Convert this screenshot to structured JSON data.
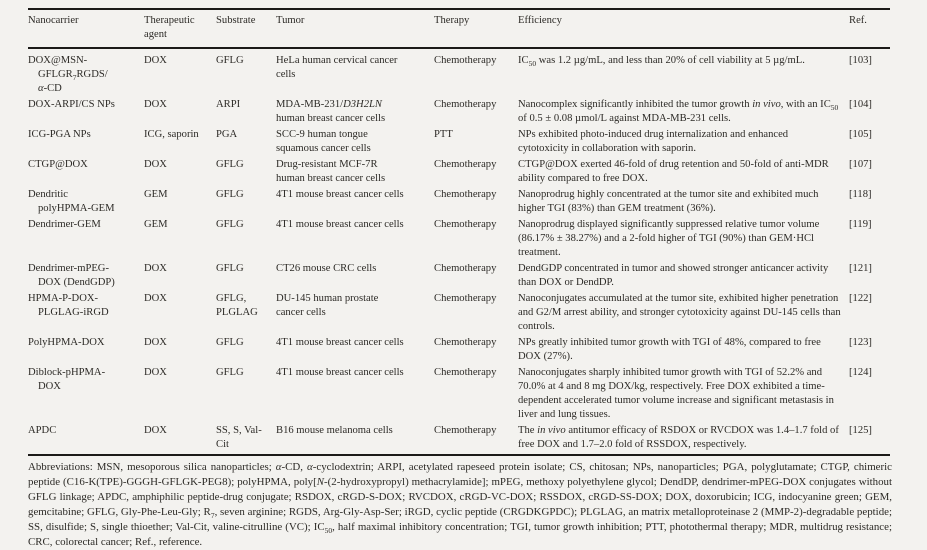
{
  "page": {
    "background_color": "#f3f2ef",
    "text_color": "#2c2a26",
    "rule_color": "#1b1a18"
  },
  "table": {
    "columns": [
      {
        "key": "nanocarrier",
        "label": "Nanocarrier"
      },
      {
        "key": "agent",
        "label": "Therapeutic agent"
      },
      {
        "key": "substrate",
        "label": "Substrate"
      },
      {
        "key": "tumor",
        "label": "Tumor"
      },
      {
        "key": "therapy",
        "label": "Therapy"
      },
      {
        "key": "efficiency",
        "label": "Efficiency"
      },
      {
        "key": "ref",
        "label": "Ref."
      }
    ],
    "rows": [
      {
        "nanocarrier": "DOX@MSN-<br>GFLGR<sub>7</sub>RGDS/<br><i>α</i>-CD",
        "agent": "DOX",
        "substrate": "GFLG",
        "tumor": "HeLa human cervical cancer<br>cells",
        "therapy": "Chemotherapy",
        "efficiency": "IC<sub>50</sub> was 1.2 µg/mL, and less than 20% of cell viability at 5 µg/mL.",
        "ref": "[103]"
      },
      {
        "nanocarrier": "DOX-ARPI/CS NPs",
        "agent": "DOX",
        "substrate": "ARPI",
        "tumor": "MDA-MB-231/<i>D3H2LN</i><br>human breast cancer cells",
        "therapy": "Chemotherapy",
        "efficiency": "Nanocomplex significantly inhibited the tumor growth <i>in vivo</i>, with an IC<sub>50</sub> of 0.5 ± 0.08 µmol/L against MDA-MB-231 cells.",
        "ref": "[104]"
      },
      {
        "nanocarrier": "ICG-PGA NPs",
        "agent": "ICG, saporin",
        "substrate": "PGA",
        "tumor": "SCC-9 human tongue<br>squamous cancer cells",
        "therapy": "PTT",
        "efficiency": "NPs exhibited photo-induced drug internalization and enhanced cytotoxicity in collaboration with saporin.",
        "ref": "[105]"
      },
      {
        "nanocarrier": "CTGP@DOX",
        "agent": "DOX",
        "substrate": "GFLG",
        "tumor": "Drug-resistant MCF-7R<br>human breast cancer cells",
        "therapy": "Chemotherapy",
        "efficiency": "CTGP@DOX exerted 46-fold of drug retention and 50-fold of anti-MDR ability compared to free DOX.",
        "ref": "[107]"
      },
      {
        "nanocarrier": "Dendritic<br>polyHPMA-GEM",
        "agent": "GEM",
        "substrate": "GFLG",
        "tumor": "4T1 mouse breast cancer cells",
        "therapy": "Chemotherapy",
        "efficiency": "Nanoprodrug highly concentrated at the tumor site and exhibited much higher TGI (83%) than GEM treatment (36%).",
        "ref": "[118]"
      },
      {
        "nanocarrier": "Dendrimer-GEM",
        "agent": "GEM",
        "substrate": "GFLG",
        "tumor": "4T1 mouse breast cancer cells",
        "therapy": "Chemotherapy",
        "efficiency": "Nanoprodrug displayed significantly suppressed relative tumor volume (86.17% ± 38.27%) and a 2-fold higher of TGI (90%) than GEM·HCl treatment.",
        "ref": "[119]"
      },
      {
        "nanocarrier": "Dendrimer-mPEG-<br>DOX (DendGDP)",
        "agent": "DOX",
        "substrate": "GFLG",
        "tumor": "CT26 mouse CRC cells",
        "therapy": "Chemotherapy",
        "efficiency": "DendGDP concentrated in tumor and showed stronger anticancer activity than DOX or DendDP.",
        "ref": "[121]"
      },
      {
        "nanocarrier": "HPMA-P-DOX-<br>PLGLAG-iRGD",
        "agent": "DOX",
        "substrate": "GFLG,<br>PLGLAG",
        "tumor": "DU-145 human prostate<br>cancer cells",
        "therapy": "Chemotherapy",
        "efficiency": "Nanoconjugates accumulated at the tumor site, exhibited higher penetration and G2/M arrest ability, and stronger cytotoxicity against DU-145 cells than controls.",
        "ref": "[122]"
      },
      {
        "nanocarrier": "PolyHPMA-DOX",
        "agent": "DOX",
        "substrate": "GFLG",
        "tumor": "4T1 mouse breast cancer cells",
        "therapy": "Chemotherapy",
        "efficiency": "NPs greatly inhibited tumor growth with TGI of 48%, compared to free DOX (27%).",
        "ref": "[123]"
      },
      {
        "nanocarrier": "Diblock-pHPMA-<br>DOX",
        "agent": "DOX",
        "substrate": "GFLG",
        "tumor": "4T1 mouse breast cancer cells",
        "therapy": "Chemotherapy",
        "efficiency": "Nanoconjugates sharply inhibited tumor growth with TGI of 52.2% and 70.0% at 4 and 8 mg DOX/kg, respectively. Free DOX exhibited a time-dependent accelerated tumor volume increase and significant metastasis in liver and lung tissues.",
        "ref": "[124]"
      },
      {
        "nanocarrier": "APDC",
        "agent": "DOX",
        "substrate": "SS, S, Val-<br>Cit",
        "tumor": "B16 mouse melanoma cells",
        "therapy": "Chemotherapy",
        "efficiency": "The <i>in vivo</i> antitumor efficacy of RSDOX or RVCDOX was 1.4–1.7 fold of free DOX and 1.7–2.0 fold of RSSDOX, respectively.",
        "ref": "[125]"
      }
    ]
  },
  "footnote": "Abbreviations: MSN, mesoporous silica nanoparticles; <i>α</i>-CD, <i>α</i>-cyclodextrin; ARPI, acetylated rapeseed protein isolate; CS, chitosan; NPs, nanoparticles; PGA, polyglutamate; CTGP, chimeric peptide (C16-K(TPE)-GGGH-GFLGK-PEG8); polyHPMA, poly[<i>N</i>-(2-hydroxypropyl) methacrylamide]; mPEG, methoxy polyethylene glycol; DendDP, dendrimer-mPEG-DOX conjugates without GFLG linkage; APDC, amphiphilic peptide-drug conjugate; RSDOX, cRGD-S-DOX; RVCDOX, cRGD-VC-DOX; RSSDOX, cRGD-SS-DOX; DOX, doxorubicin; ICG, indocyanine green; GEM, gemcitabine; GFLG, Gly-Phe-Leu-Gly; R<sub>7</sub>, seven arginine; RGDS, Arg-Gly-Asp-Ser; iRGD, cyclic peptide (CRGDKGPDC); PLGLAG, an matrix metalloproteinase 2 (MMP-2)-degradable peptide; SS, disulfide; S, single thioether; Val-Cit, valine-citrulline (VC); IC<sub>50</sub>, half maximal inhibitory concentration; TGI, tumor growth inhibition; PTT, photothermal therapy; MDR, multidrug resistance; CRC, colorectal cancer; Ref., reference."
}
